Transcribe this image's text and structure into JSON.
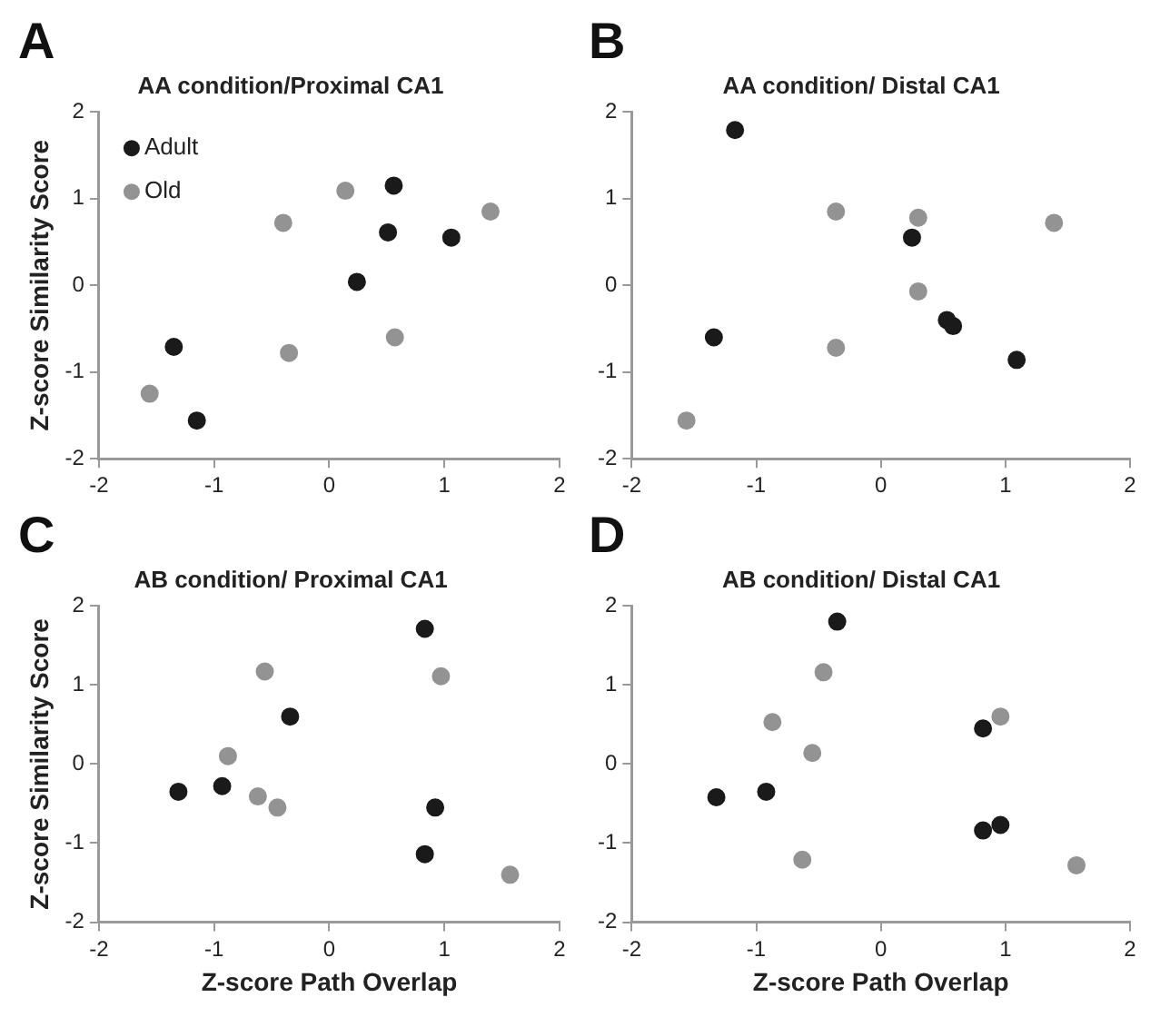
{
  "chart_data": [
    {
      "type": "scatter",
      "title": "AA condition/Proximal CA1",
      "ylabel": "Z-score Similarity Score",
      "annotations": [
        "A"
      ],
      "legend": "top left",
      "marker": "circle",
      "grid": false,
      "xlim": [
        -2,
        2
      ],
      "xticks": [
        -2,
        -1,
        0,
        1,
        2
      ],
      "ylim": [
        -2,
        2
      ],
      "yticks": [
        -2,
        -1,
        0,
        1,
        2
      ],
      "series": [
        {
          "name": "Adult",
          "color": "#1a1a1a",
          "x": [
            -1.35,
            -1.15,
            0.24,
            0.51,
            0.56,
            1.06
          ],
          "values": [
            -0.71,
            -1.56,
            0.04,
            0.61,
            1.15,
            0.55
          ]
        },
        {
          "name": "Old",
          "color": "#939393",
          "x": [
            -1.56,
            -0.4,
            -0.35,
            0.14,
            0.57,
            1.4
          ],
          "values": [
            -1.25,
            0.72,
            -0.78,
            1.09,
            -0.6,
            0.85
          ]
        }
      ]
    },
    {
      "type": "scatter",
      "title": "AA condition/ Distal CA1",
      "annotations": [
        "B"
      ],
      "marker": "circle",
      "grid": false,
      "xlim": [
        -2,
        2
      ],
      "xticks": [
        -2,
        -1,
        0,
        1,
        2
      ],
      "ylim": [
        -2,
        2
      ],
      "yticks": [
        -2,
        -1,
        0,
        1,
        2
      ],
      "series": [
        {
          "color": "#1a1a1a",
          "x": [
            -1.17,
            -1.34,
            0.25,
            0.53,
            0.58,
            1.09
          ],
          "values": [
            1.79,
            -0.6,
            0.55,
            -0.4,
            -0.47,
            -0.86
          ]
        },
        {
          "color": "#939393",
          "x": [
            -1.56,
            -0.36,
            -0.36,
            0.3,
            0.3,
            1.39
          ],
          "values": [
            -1.56,
            0.85,
            -0.72,
            -0.07,
            0.78,
            0.72
          ]
        }
      ]
    },
    {
      "type": "scatter",
      "title": "AB condition/ Proximal CA1",
      "xlabel": "Z-score Path Overlap",
      "ylabel": "Z-score Similarity Score",
      "annotations": [
        "C"
      ],
      "marker": "circle",
      "grid": false,
      "xlim": [
        -2,
        2
      ],
      "xticks": [
        -2,
        -1,
        0,
        1,
        2
      ],
      "ylim": [
        -2,
        2
      ],
      "yticks": [
        -2,
        -1,
        0,
        1,
        2
      ],
      "series": [
        {
          "color": "#1a1a1a",
          "x": [
            -1.31,
            -0.93,
            -0.34,
            0.83,
            0.92,
            0.83
          ],
          "values": [
            -0.35,
            -0.28,
            0.6,
            1.71,
            -0.55,
            -1.14
          ]
        },
        {
          "color": "#939393",
          "x": [
            -0.56,
            -0.88,
            -0.62,
            -0.45,
            0.97,
            1.57
          ],
          "values": [
            1.17,
            0.1,
            -0.41,
            -0.55,
            1.11,
            -1.4
          ]
        }
      ]
    },
    {
      "type": "scatter",
      "title": "AB condition/ Distal CA1",
      "xlabel": "Z-score Path Overlap",
      "annotations": [
        "D"
      ],
      "marker": "circle",
      "grid": false,
      "xlim": [
        -2,
        2
      ],
      "xticks": [
        -2,
        -1,
        0,
        1,
        2
      ],
      "ylim": [
        -2,
        2
      ],
      "yticks": [
        -2,
        -1,
        0,
        1,
        2
      ],
      "series": [
        {
          "color": "#1a1a1a",
          "x": [
            -1.32,
            -0.92,
            -0.35,
            0.82,
            0.82,
            0.96
          ],
          "values": [
            -0.42,
            -0.35,
            1.8,
            0.45,
            -0.84,
            -0.77
          ]
        },
        {
          "color": "#939393",
          "x": [
            -0.46,
            -0.87,
            -0.55,
            -0.63,
            0.96,
            1.57
          ],
          "values": [
            1.16,
            0.53,
            0.14,
            -1.21,
            0.6,
            -1.28
          ]
        }
      ]
    }
  ]
}
